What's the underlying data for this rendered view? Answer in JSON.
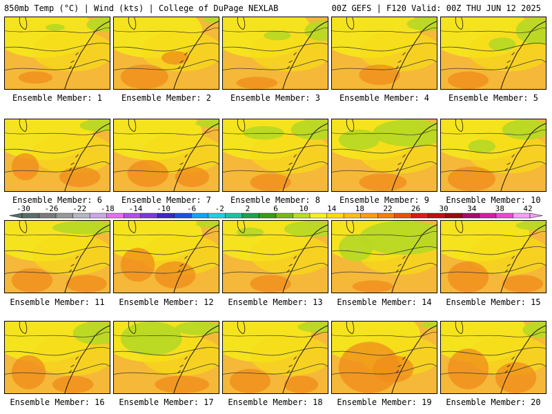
{
  "header": {
    "left": "850mb Temp (°C) | Wind (kts) | College of DuPage NEXLAB",
    "right": "00Z GEFS | F120 Valid: 00Z THU JUN 12 2025"
  },
  "colorbar": {
    "labels": [
      "-30",
      "-26",
      "-22",
      "-18",
      "-14",
      "-10",
      "-6",
      "-2",
      "2",
      "6",
      "10",
      "14",
      "18",
      "22",
      "26",
      "30",
      "34",
      "38",
      "42"
    ],
    "colors": [
      "#5a6e66",
      "#7a7a7a",
      "#989898",
      "#b6b6c2",
      "#c8a8e6",
      "#e070f0",
      "#b050e8",
      "#7a3ad8",
      "#3a2ac0",
      "#1e50e0",
      "#1aa0f0",
      "#20d0e0",
      "#20c0a0",
      "#20a050",
      "#3a9a1a",
      "#78b81a",
      "#b8dc28",
      "#f4f020",
      "#fcdc10",
      "#f8c010",
      "#f4a010",
      "#f08010",
      "#e85010",
      "#e01818",
      "#c01010",
      "#901010",
      "#a0106a",
      "#d020a0",
      "#e848d8",
      "#f4a0f4"
    ]
  },
  "panels": [
    {
      "label": "Ensemble Member: 1",
      "green": [
        [
          120,
          0,
          50,
          22
        ],
        [
          60,
          10,
          28,
          10
        ]
      ],
      "orange": [
        [
          20,
          80,
          50,
          18
        ]
      ]
    },
    {
      "label": "Ensemble Member: 2",
      "green": [
        [
          130,
          0,
          30,
          8
        ]
      ],
      "orange": [
        [
          10,
          70,
          70,
          36
        ],
        [
          70,
          50,
          40,
          20
        ]
      ]
    },
    {
      "label": "Ensemble Member: 3",
      "green": [
        [
          120,
          5,
          50,
          30
        ],
        [
          60,
          20,
          40,
          14
        ]
      ],
      "orange": [
        [
          20,
          88,
          60,
          18
        ]
      ]
    },
    {
      "label": "Ensemble Member: 4",
      "green": [
        [
          110,
          0,
          60,
          20
        ]
      ],
      "orange": [
        [
          40,
          70,
          60,
          30
        ]
      ]
    },
    {
      "label": "Ensemble Member: 5",
      "green": [
        [
          110,
          0,
          60,
          40
        ],
        [
          70,
          30,
          40,
          20
        ]
      ],
      "orange": [
        [
          10,
          80,
          60,
          26
        ]
      ]
    },
    {
      "label": "Ensemble Member: 6",
      "green": [
        [
          110,
          0,
          60,
          18
        ]
      ],
      "orange": [
        [
          10,
          50,
          40,
          40
        ],
        [
          80,
          70,
          60,
          30
        ]
      ]
    },
    {
      "label": "Ensemble Member: 7",
      "green": [
        [
          120,
          0,
          50,
          12
        ]
      ],
      "orange": [
        [
          20,
          60,
          60,
          40
        ],
        [
          90,
          70,
          50,
          30
        ]
      ]
    },
    {
      "label": "Ensemble Member: 8",
      "green": [
        [
          100,
          0,
          70,
          30
        ],
        [
          30,
          10,
          60,
          20
        ]
      ],
      "orange": [
        [
          40,
          80,
          60,
          26
        ]
      ]
    },
    {
      "label": "Ensemble Member: 9",
      "green": [
        [
          60,
          0,
          110,
          40
        ],
        [
          10,
          15,
          60,
          30
        ]
      ],
      "orange": [
        [
          40,
          80,
          70,
          26
        ]
      ]
    },
    {
      "label": "Ensemble Member: 10",
      "green": [
        [
          90,
          0,
          70,
          30
        ],
        [
          40,
          30,
          40,
          20
        ]
      ],
      "orange": [
        [
          10,
          70,
          70,
          36
        ]
      ]
    },
    {
      "label": "Ensemble Member: 11",
      "green": [
        [
          70,
          0,
          100,
          20
        ]
      ],
      "orange": [
        [
          10,
          70,
          60,
          36
        ],
        [
          90,
          80,
          60,
          26
        ]
      ]
    },
    {
      "label": "Ensemble Member: 12",
      "green": [
        [
          120,
          0,
          50,
          10
        ]
      ],
      "orange": [
        [
          10,
          40,
          50,
          50
        ],
        [
          60,
          60,
          60,
          40
        ]
      ]
    },
    {
      "label": "Ensemble Member: 13",
      "green": [
        [
          90,
          0,
          80,
          24
        ],
        [
          20,
          10,
          40,
          14
        ]
      ],
      "orange": [
        [
          40,
          80,
          60,
          26
        ]
      ]
    },
    {
      "label": "Ensemble Member: 14",
      "green": [
        [
          40,
          0,
          130,
          50
        ],
        [
          10,
          20,
          50,
          40
        ]
      ],
      "orange": [
        [
          30,
          88,
          60,
          18
        ]
      ]
    },
    {
      "label": "Ensemble Member: 15",
      "green": [
        [
          110,
          0,
          60,
          14
        ]
      ],
      "orange": [
        [
          10,
          60,
          60,
          46
        ],
        [
          90,
          80,
          60,
          26
        ]
      ]
    },
    {
      "label": "Ensemble Member: 16",
      "green": [
        [
          100,
          0,
          70,
          34
        ]
      ],
      "orange": [
        [
          10,
          50,
          50,
          50
        ],
        [
          70,
          80,
          60,
          26
        ]
      ]
    },
    {
      "label": "Ensemble Member: 17",
      "green": [
        [
          10,
          0,
          90,
          50
        ],
        [
          90,
          0,
          70,
          20
        ]
      ],
      "orange": [
        [
          60,
          80,
          80,
          26
        ]
      ]
    },
    {
      "label": "Ensemble Member: 18",
      "green": [
        [
          110,
          0,
          60,
          16
        ]
      ],
      "orange": [
        [
          10,
          70,
          60,
          36
        ],
        [
          90,
          80,
          50,
          26
        ]
      ]
    },
    {
      "label": "Ensemble Member: 19",
      "green": [
        [
          130,
          0,
          40,
          10
        ]
      ],
      "orange": [
        [
          10,
          30,
          90,
          76
        ],
        [
          60,
          50,
          60,
          40
        ]
      ]
    },
    {
      "label": "Ensemble Member: 20",
      "green": [
        [
          120,
          0,
          50,
          24
        ]
      ],
      "orange": [
        [
          10,
          40,
          60,
          60
        ],
        [
          80,
          60,
          60,
          46
        ]
      ]
    }
  ]
}
